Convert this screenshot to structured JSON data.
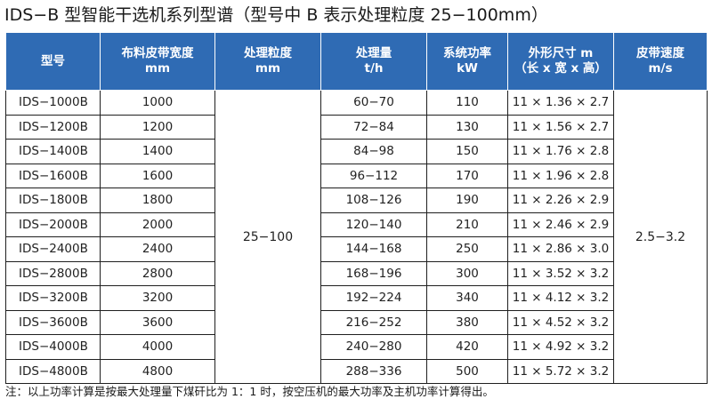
{
  "title": "IDS−B 型智能干选机系列型谱（型号中 B 表示处理粒度 25−100mm）",
  "table": {
    "headers": [
      {
        "line1": "型号",
        "line2": ""
      },
      {
        "line1": "布料皮带宽度",
        "line2": "mm"
      },
      {
        "line1": "处理粒度",
        "line2": "mm"
      },
      {
        "line1": "处理量",
        "line2": "t/h"
      },
      {
        "line1": "系统功率",
        "line2": "kW"
      },
      {
        "line1": "外形尺寸 m",
        "line2": "（长 x 宽 x 高）"
      },
      {
        "line1": "皮带速度",
        "line2": "m/s"
      }
    ],
    "granularity": "25−100",
    "belt_speed": "2.5−3.2",
    "rows": [
      {
        "model": "IDS−1000B",
        "width": "1000",
        "capacity": "60−70",
        "power": "110",
        "size": "11 × 1.36 × 2.7"
      },
      {
        "model": "IDS−1200B",
        "width": "1200",
        "capacity": "72−84",
        "power": "130",
        "size": "11 × 1.56 × 2.7"
      },
      {
        "model": "IDS−1400B",
        "width": "1400",
        "capacity": "84−98",
        "power": "150",
        "size": "11 × 1.76 × 2.8"
      },
      {
        "model": "IDS−1600B",
        "width": "1600",
        "capacity": "96−112",
        "power": "170",
        "size": "11 × 1.96 × 2.8"
      },
      {
        "model": "IDS−1800B",
        "width": "1800",
        "capacity": "108−126",
        "power": "190",
        "size": "11 × 2.26 × 2.9"
      },
      {
        "model": "IDS−2000B",
        "width": "2000",
        "capacity": "120−140",
        "power": "210",
        "size": "11 × 2.46 × 2.9"
      },
      {
        "model": "IDS−2400B",
        "width": "2400",
        "capacity": "144−168",
        "power": "250",
        "size": "11 × 2.86 × 3.0"
      },
      {
        "model": "IDS−2800B",
        "width": "2800",
        "capacity": "168−196",
        "power": "300",
        "size": "11 × 3.52 × 3.2"
      },
      {
        "model": "IDS−3200B",
        "width": "3200",
        "capacity": "192−224",
        "power": "340",
        "size": "11 × 4.12 × 3.2"
      },
      {
        "model": "IDS−3600B",
        "width": "3600",
        "capacity": "216−252",
        "power": "380",
        "size": "11 × 4.52 × 3.2"
      },
      {
        "model": "IDS−4000B",
        "width": "4000",
        "capacity": "240−280",
        "power": "420",
        "size": "11 × 4.92 × 3.2"
      },
      {
        "model": "IDS−4800B",
        "width": "4800",
        "capacity": "288−336",
        "power": "500",
        "size": "11 × 5.72 × 3.2"
      }
    ]
  },
  "note": "注：以上功率计算是按最大处理量下煤矸比为 1：1 时，按空压机的最大功率及主机功率计算得出。",
  "colors": {
    "header_bg": "#2f6bb4",
    "header_text": "#ffffff",
    "border": "#1f1f1f"
  }
}
